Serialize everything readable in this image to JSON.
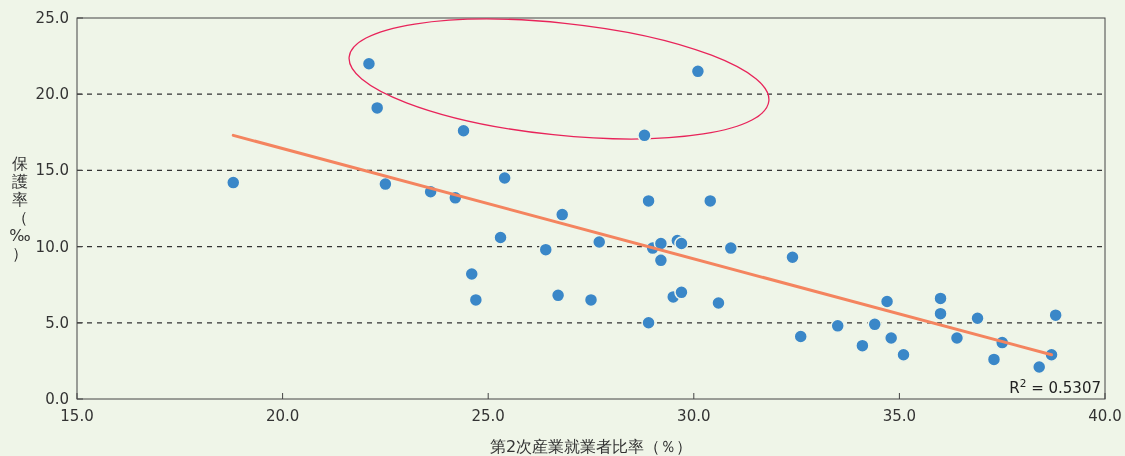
{
  "chart_data": {
    "type": "scatter",
    "xlabel": "第2次産業就業者比率（％）",
    "ylabel": "保護率（‰）",
    "xlim": [
      15,
      40
    ],
    "ylim": [
      0,
      25
    ],
    "xticks": [
      {
        "value": 15,
        "label": "15.0"
      },
      {
        "value": 20,
        "label": "20.0"
      },
      {
        "value": 25,
        "label": "25.0"
      },
      {
        "value": 30,
        "label": "30.0"
      },
      {
        "value": 35,
        "label": "35.0"
      },
      {
        "value": 40,
        "label": "40.0"
      }
    ],
    "yticks": [
      {
        "value": 0,
        "label": "0.0"
      },
      {
        "value": 5,
        "label": "5.0"
      },
      {
        "value": 10,
        "label": "10.0"
      },
      {
        "value": 15,
        "label": "15.0"
      },
      {
        "value": 20,
        "label": "20.0"
      },
      {
        "value": 25,
        "label": "25.0"
      }
    ],
    "grid": "y",
    "series": [
      {
        "marker": "circle",
        "color": "#3a87c8",
        "x": [
          18.8,
          22.1,
          22.3,
          22.5,
          23.6,
          24.2,
          24.4,
          24.6,
          24.7,
          25.3,
          25.4,
          26.4,
          26.7,
          26.8,
          27.5,
          27.7,
          28.8,
          28.9,
          28.9,
          29.0,
          29.2,
          29.2,
          29.5,
          29.6,
          29.7,
          29.7,
          30.1,
          30.4,
          30.6,
          30.9,
          32.4,
          32.6,
          33.5,
          34.1,
          34.4,
          34.7,
          34.8,
          35.1,
          36.0,
          36.0,
          36.4,
          36.9,
          37.3,
          37.5,
          38.4,
          38.7,
          38.8
        ],
        "values": [
          14.2,
          22.0,
          19.1,
          14.1,
          13.6,
          13.2,
          17.6,
          8.2,
          6.5,
          10.6,
          14.5,
          9.8,
          6.8,
          12.1,
          6.5,
          10.3,
          17.3,
          13.0,
          5.0,
          9.9,
          10.2,
          9.1,
          6.7,
          10.4,
          10.2,
          7.0,
          21.5,
          13.0,
          6.3,
          9.9,
          9.3,
          4.1,
          4.8,
          3.5,
          4.9,
          6.4,
          4.0,
          2.9,
          6.6,
          5.6,
          4.0,
          5.3,
          2.6,
          3.7,
          2.1,
          2.9,
          5.5
        ]
      },
      {
        "type": "line",
        "color": "#f4845f",
        "x": [
          18.8,
          38.7
        ],
        "values": [
          17.3,
          2.9
        ]
      }
    ],
    "annotations": [
      "R$^{2}$ = 0.5307"
    ]
  }
}
